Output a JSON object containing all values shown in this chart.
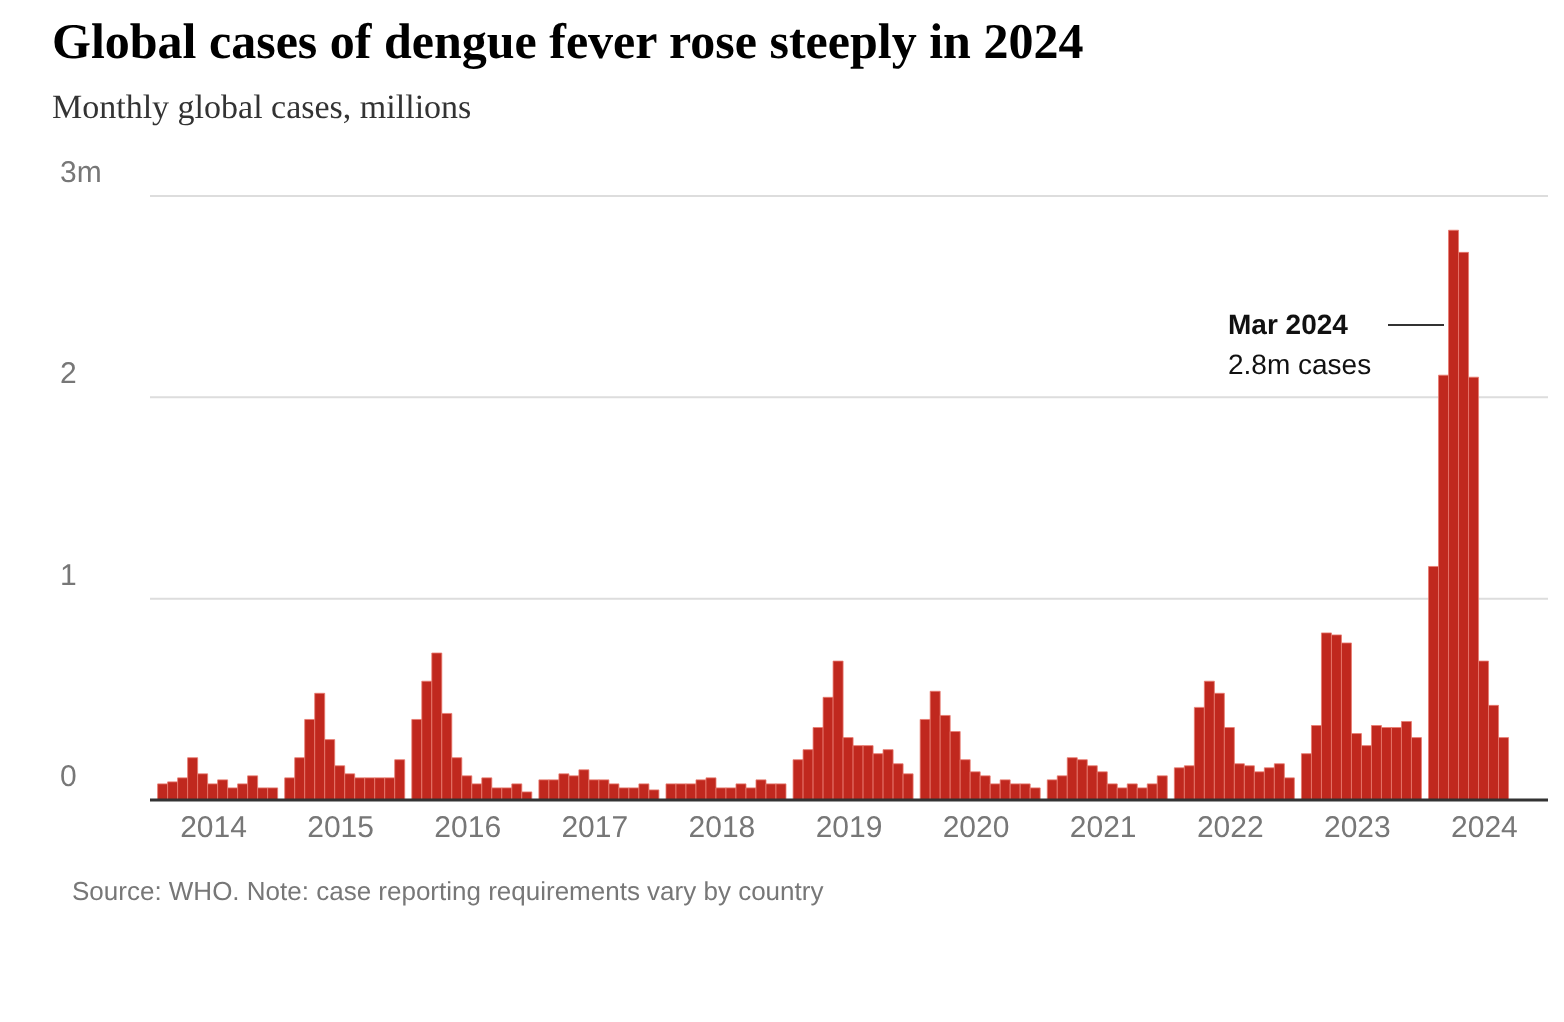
{
  "chart_data": {
    "type": "bar",
    "title": "Global cases of dengue fever rose steeply in 2024",
    "subtitle": "Monthly global cases, millions",
    "categories": [
      "2014",
      "2015",
      "2016",
      "2017",
      "2018",
      "2019",
      "2020",
      "2021",
      "2022",
      "2023",
      "2024"
    ],
    "series": [
      {
        "color": "#c0281e",
        "values": [
          0.08,
          0.11,
          0.4,
          0.1,
          0.08,
          0.2,
          0.4,
          0.1,
          0.16,
          0.23,
          1.16
        ]
      },
      {
        "color": "#c0281e",
        "values": [
          0.09,
          0.21,
          0.59,
          0.1,
          0.08,
          0.25,
          0.54,
          0.12,
          0.17,
          0.37,
          2.11
        ]
      },
      {
        "color": "#c0281e",
        "values": [
          0.11,
          0.4,
          0.73,
          0.13,
          0.08,
          0.36,
          0.42,
          0.21,
          0.46,
          0.83,
          2.83
        ]
      },
      {
        "color": "#c0281e",
        "values": [
          0.21,
          0.53,
          0.43,
          0.12,
          0.1,
          0.51,
          0.34,
          0.2,
          0.59,
          0.82,
          2.72
        ]
      },
      {
        "color": "#c0281e",
        "values": [
          0.13,
          0.3,
          0.21,
          0.15,
          0.11,
          0.69,
          0.2,
          0.17,
          0.53,
          0.78,
          2.1
        ]
      },
      {
        "color": "#c0281e",
        "values": [
          0.08,
          0.17,
          0.12,
          0.1,
          0.06,
          0.31,
          0.14,
          0.14,
          0.36,
          0.33,
          0.69
        ]
      },
      {
        "color": "#c0281e",
        "values": [
          0.1,
          0.13,
          0.08,
          0.1,
          0.06,
          0.27,
          0.12,
          0.08,
          0.18,
          0.27,
          0.47
        ]
      },
      {
        "color": "#c0281e",
        "values": [
          0.06,
          0.11,
          0.11,
          0.08,
          0.08,
          0.27,
          0.08,
          0.06,
          0.17,
          0.37,
          0.31
        ]
      },
      {
        "color": "#c0281e",
        "values": [
          0.08,
          0.11,
          0.06,
          0.06,
          0.06,
          0.23,
          0.1,
          0.08,
          0.14,
          0.36,
          null
        ]
      },
      {
        "color": "#c0281e",
        "values": [
          0.12,
          0.11,
          0.06,
          0.06,
          0.1,
          0.25,
          0.08,
          0.06,
          0.16,
          0.36,
          null
        ]
      },
      {
        "color": "#c0281e",
        "values": [
          0.06,
          0.11,
          0.08,
          0.08,
          0.08,
          0.18,
          0.08,
          0.08,
          0.18,
          0.39,
          null
        ]
      },
      {
        "color": "#c0281e",
        "values": [
          0.06,
          0.2,
          0.04,
          0.05,
          0.08,
          0.13,
          0.06,
          0.12,
          0.11,
          0.31,
          null
        ]
      }
    ],
    "ylim": [
      0,
      3
    ],
    "yticks": [
      0,
      1,
      2,
      {
        "value": 3,
        "label": "3m"
      }
    ],
    "grid": "y",
    "annotations": [
      "Mar 2024\n2.8m cases",
      "Source: WHO. Note: case reporting requirements vary by country"
    ]
  }
}
